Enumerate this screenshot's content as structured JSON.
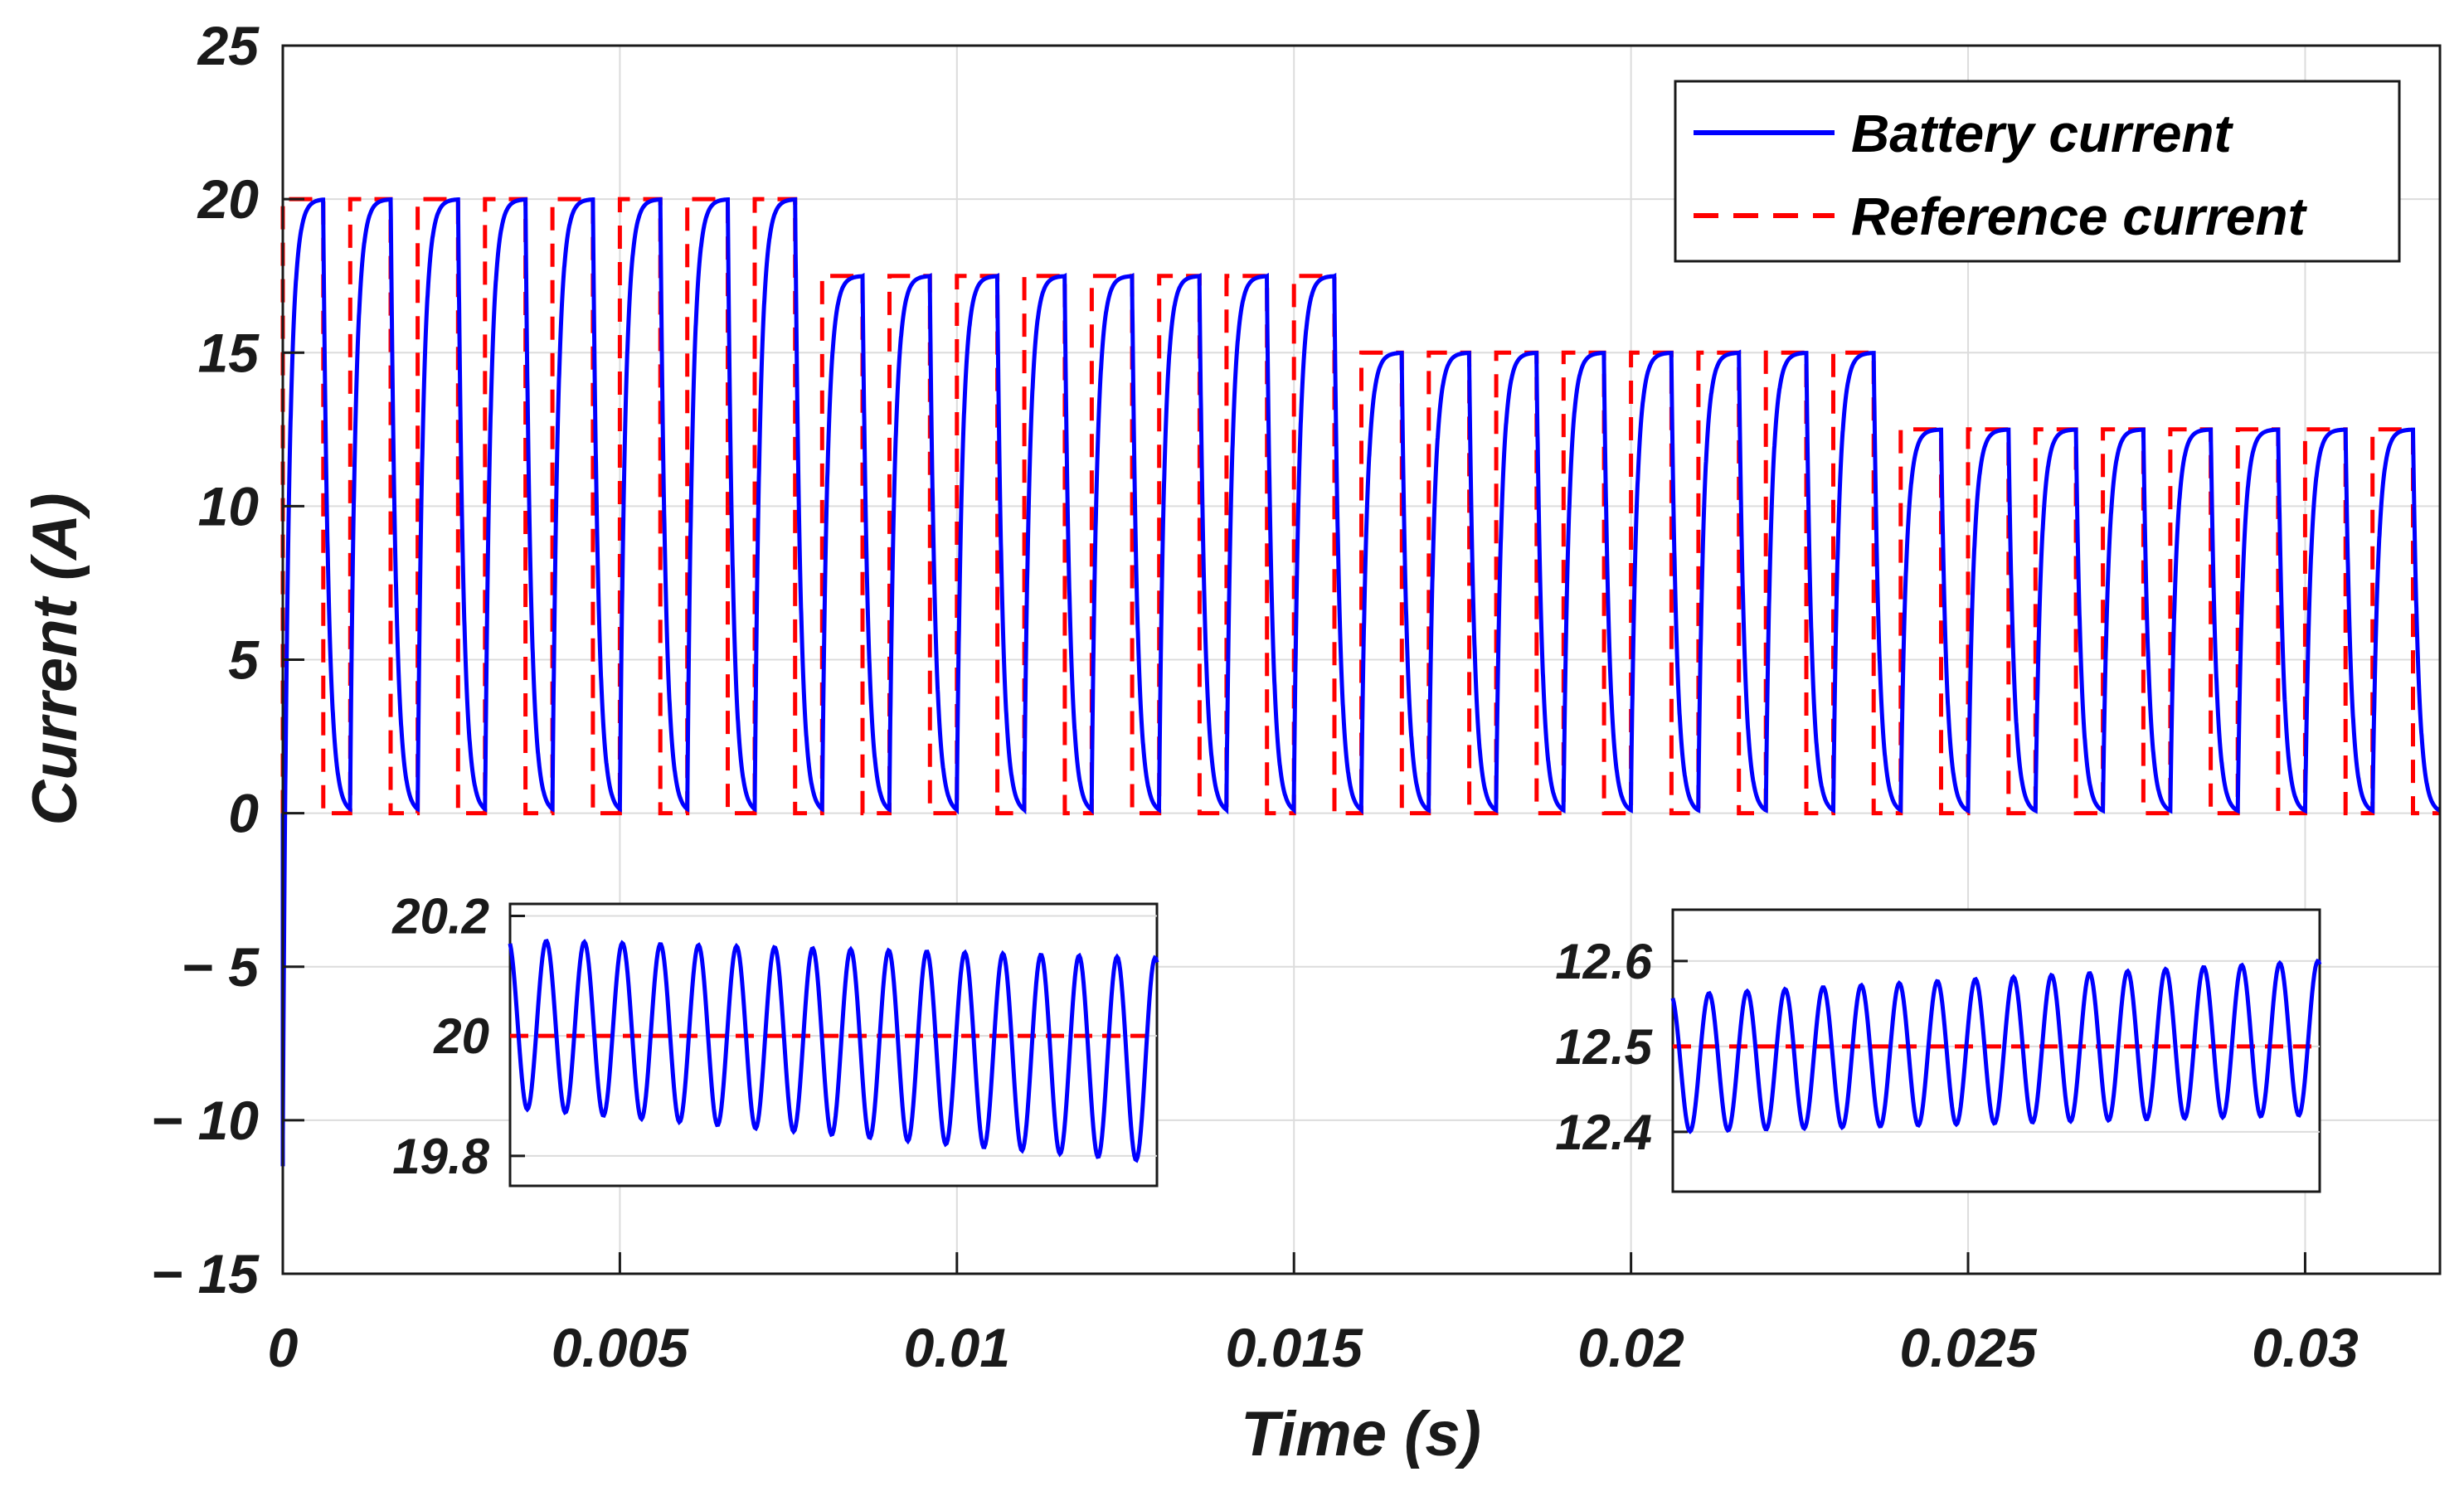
{
  "chart_data": {
    "type": "line",
    "xlabel": "Time (s)",
    "ylabel": "Current (A)",
    "xlim": [
      0,
      0.032
    ],
    "ylim": [
      -15,
      25
    ],
    "xticks": [
      0,
      0.005,
      0.01,
      0.015,
      0.02,
      0.025,
      0.03
    ],
    "xtick_labels": [
      "0",
      "0.005",
      "0.01",
      "0.015",
      "0.02",
      "0.025",
      "0.03"
    ],
    "yticks": [
      -15,
      -10,
      -5,
      0,
      5,
      10,
      15,
      20,
      25
    ],
    "ytick_labels": [
      "− 15",
      "− 10",
      "− 5",
      "0",
      "5",
      "10",
      "15",
      "20",
      "25"
    ],
    "grid": true,
    "legend_position": "top-right",
    "pulse_period_s": 0.001,
    "pulse_width_s": 0.0006,
    "pulse_rise_time_constant_s": 8e-05,
    "initial_transient_min_A": -11.5,
    "steps": [
      {
        "start": 0.0,
        "end": 0.008,
        "level": 20
      },
      {
        "start": 0.008,
        "end": 0.016,
        "level": 17.5
      },
      {
        "start": 0.016,
        "end": 0.024,
        "level": 15
      },
      {
        "start": 0.024,
        "end": 0.032,
        "level": 12.5
      }
    ],
    "series": [
      {
        "name": "Battery current",
        "color": "#0000ff",
        "style": "solid"
      },
      {
        "name": "Reference current",
        "color": "#ff0000",
        "style": "dashed"
      }
    ],
    "insets": [
      {
        "ylim": [
          19.75,
          20.22
        ],
        "yticks": [
          19.8,
          20.0,
          20.2
        ],
        "ytick_labels": [
          "19.8",
          "20",
          "20.2"
        ],
        "reference": 20,
        "cycles": 17,
        "amp_start": 0.14,
        "amp_end": 0.17,
        "offset_start": 0.02,
        "offset_end": -0.04
      },
      {
        "ylim": [
          12.33,
          12.66
        ],
        "yticks": [
          12.4,
          12.5,
          12.6
        ],
        "ytick_labels": [
          "12.4",
          "12.5",
          "12.6"
        ],
        "reference": 12.5,
        "cycles": 17,
        "amp_start": 0.08,
        "amp_end": 0.09,
        "offset_start": -0.02,
        "offset_end": 0.01
      }
    ]
  }
}
